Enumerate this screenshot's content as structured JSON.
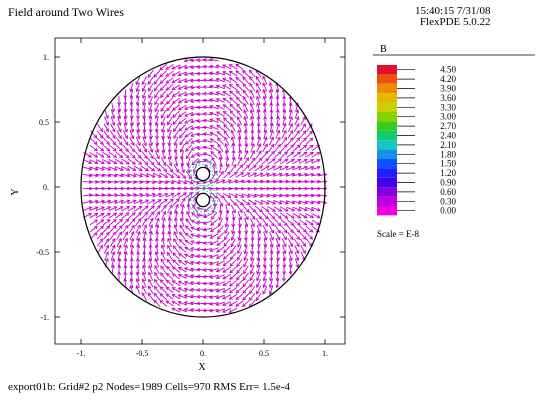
{
  "title": "Field around Two Wires",
  "stamp": {
    "time_date": "15:40:15 7/31/08",
    "version": "FlexPDE 5.0.22"
  },
  "footer": "export01b:  Grid#2  p2  Nodes=1989 Cells=970 RMS Err= 1.5e-4",
  "chart_data": {
    "type": "vector",
    "xlabel": "X",
    "ylabel": "Y",
    "xlim": [
      -1.1,
      1.1
    ],
    "ylim": [
      -1.1,
      1.1
    ],
    "x_ticks": [
      "-1.",
      "-0.5",
      "0.",
      "0.5",
      "1."
    ],
    "x_tick_values": [
      -1,
      -0.5,
      0,
      0.5,
      1
    ],
    "y_ticks": [
      "1.",
      "0.5",
      "0.",
      "-0.5",
      "-1."
    ],
    "y_tick_values": [
      1,
      0.5,
      0,
      -0.5,
      -1
    ],
    "domain": {
      "shape": "circle",
      "center": [
        0,
        0
      ],
      "radius": 1.0
    },
    "wires": [
      {
        "center": [
          0,
          0.1
        ],
        "radius": 0.04
      },
      {
        "center": [
          0,
          -0.1
        ],
        "radius": 0.04
      }
    ],
    "legend": {
      "variable": "B",
      "scale_text": "Scale = E-8",
      "levels": [
        "4.50",
        "4.20",
        "3.90",
        "3.60",
        "3.30",
        "3.00",
        "2.70",
        "2.40",
        "2.10",
        "1.80",
        "1.50",
        "1.20",
        "0.90",
        "0.60",
        "0.30",
        "0.00"
      ],
      "colors": [
        "#e0102a",
        "#ee5010",
        "#f08a00",
        "#e8b800",
        "#c8d000",
        "#88d200",
        "#38cc20",
        "#10cc70",
        "#10c8c0",
        "#1890e8",
        "#1050ff",
        "#2020ff",
        "#4000ee",
        "#8000e0",
        "#c000e0",
        "#f000e0"
      ]
    },
    "arrow_color": "#c400c8"
  }
}
